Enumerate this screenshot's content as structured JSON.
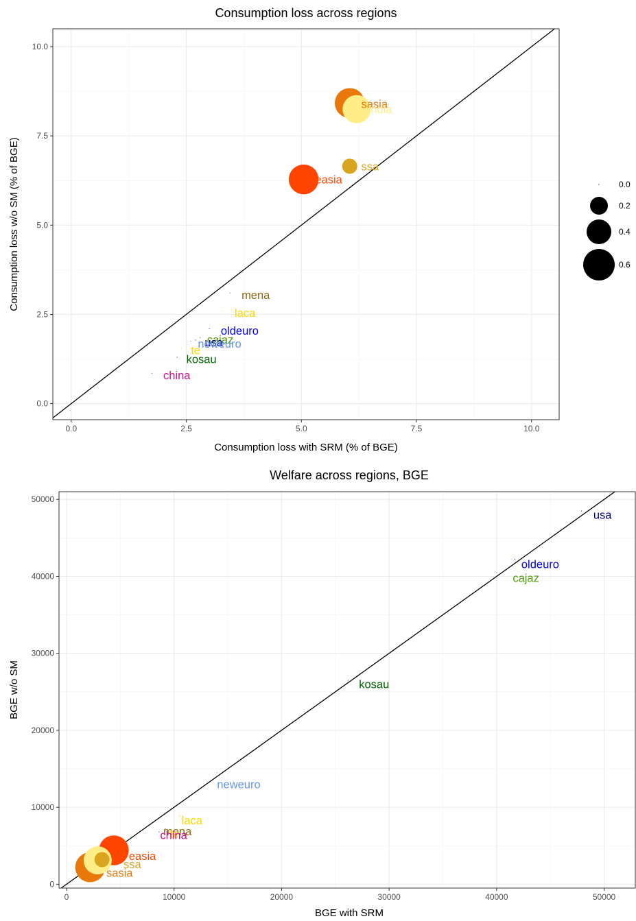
{
  "chart_data": [
    {
      "type": "scatter",
      "title": "Consumption loss across regions",
      "xlabel": "Consumption loss with SRM (% of BGE)",
      "ylabel": "Consumption loss w/o SM (% of BGE)",
      "xlim": [
        -0.4,
        10.6
      ],
      "ylim": [
        -0.45,
        10.5
      ],
      "xticks": [
        "0.0",
        "2.5",
        "5.0",
        "7.5",
        "10.0"
      ],
      "yticks": [
        "0.0",
        "2.5",
        "5.0",
        "7.5",
        "10.0"
      ],
      "diagonal": true,
      "grid": true,
      "points": [
        {
          "label": "sasia",
          "x": 6.05,
          "y": 8.42,
          "size": 0.55,
          "color": "#E8780A",
          "lx": 6.3,
          "ly": 8.4
        },
        {
          "label": "india",
          "x": 6.2,
          "y": 8.25,
          "size": 0.5,
          "color": "#FFEE88",
          "lx": 6.45,
          "ly": 8.25
        },
        {
          "label": "ssa",
          "x": 6.05,
          "y": 6.65,
          "size": 0.12,
          "color": "#D9A520",
          "lx": 6.3,
          "ly": 6.65
        },
        {
          "label": "easia",
          "x": 5.05,
          "y": 6.28,
          "size": 0.55,
          "color": "#FF4500",
          "lx": 5.3,
          "ly": 6.28
        },
        {
          "label": "mena",
          "x": 3.45,
          "y": 3.1,
          "size": 0.0,
          "color": "#8B6914",
          "lx": 3.7,
          "ly": 3.05
        },
        {
          "label": "laca",
          "x": 3.3,
          "y": 2.6,
          "size": 0.0,
          "color": "#FFD700",
          "lx": 3.55,
          "ly": 2.55
        },
        {
          "label": "oldeuro",
          "x": 3.0,
          "y": 2.1,
          "size": 0.0,
          "color": "#0000EE",
          "lx": 3.25,
          "ly": 2.05
        },
        {
          "label": "cajaz",
          "x": 2.8,
          "y": 1.85,
          "size": 0.0,
          "color": "#4E9A06",
          "lx": 2.95,
          "ly": 1.8
        },
        {
          "label": "usa",
          "x": 2.7,
          "y": 1.78,
          "size": 0.0,
          "color": "#00008B",
          "lx": 2.9,
          "ly": 1.72
        },
        {
          "label": "neweuro",
          "x": 2.6,
          "y": 1.75,
          "size": 0.0,
          "color": "#6495ED",
          "lx": 2.75,
          "ly": 1.68
        },
        {
          "label": "te",
          "x": 2.4,
          "y": 1.55,
          "size": 0.0,
          "color": "#FFD700",
          "lx": 2.6,
          "ly": 1.5
        },
        {
          "label": "kosau",
          "x": 2.3,
          "y": 1.3,
          "size": 0.0,
          "color": "#006400",
          "lx": 2.5,
          "ly": 1.25
        },
        {
          "label": "china",
          "x": 1.75,
          "y": 0.85,
          "size": 0.0,
          "color": "#C71585",
          "lx": 2.0,
          "ly": 0.8
        }
      ]
    },
    {
      "type": "scatter",
      "title": "Welfare across regions, BGE",
      "xlabel": "BGE with SRM",
      "ylabel": "BGE w/o SM",
      "xlim": [
        -700,
        52900
      ],
      "ylim": [
        -500,
        51000
      ],
      "xticks": [
        "0",
        "10000",
        "20000",
        "30000",
        "40000",
        "50000"
      ],
      "yticks": [
        "0",
        "10000",
        "20000",
        "30000",
        "40000",
        "50000"
      ],
      "diagonal": true,
      "grid": true,
      "points": [
        {
          "label": "usa",
          "x": 47900,
          "y": 48500,
          "size": 0.0,
          "color": "#00008B",
          "lx": 49000,
          "ly": 48000
        },
        {
          "label": "oldeuro",
          "x": 41700,
          "y": 42200,
          "size": 0.0,
          "color": "#0000EE",
          "lx": 42300,
          "ly": 41600
        },
        {
          "label": "cajaz",
          "x": 40000,
          "y": 40500,
          "size": 0.0,
          "color": "#4E9A06",
          "lx": 41500,
          "ly": 39800
        },
        {
          "label": "kosau",
          "x": 26200,
          "y": 26500,
          "size": 0.0,
          "color": "#006400",
          "lx": 27200,
          "ly": 26000
        },
        {
          "label": "neweuro",
          "x": 14000,
          "y": 14500,
          "size": 0.0,
          "color": "#6495ED",
          "lx": 14000,
          "ly": 13000
        },
        {
          "label": "laca",
          "x": 10500,
          "y": 8900,
          "size": 0.0,
          "color": "#FFD700",
          "lx": 10700,
          "ly": 8300
        },
        {
          "label": "mena",
          "x": 9200,
          "y": 7200,
          "size": 0.0,
          "color": "#8B6914",
          "lx": 9000,
          "ly": 6900
        },
        {
          "label": "te",
          "x": 9600,
          "y": 6900,
          "size": 0.0,
          "color": "#FFD700",
          "lx": 9600,
          "ly": 6600
        },
        {
          "label": "china",
          "x": 8600,
          "y": 6800,
          "size": 0.0,
          "color": "#C71585",
          "lx": 8700,
          "ly": 6400
        },
        {
          "label": "easia",
          "x": 4400,
          "y": 4400,
          "size": 0.55,
          "color": "#FF4500",
          "lx": 5800,
          "ly": 3700
        },
        {
          "label": "india",
          "x": 2900,
          "y": 3100,
          "size": 0.5,
          "color": "#FFEE88",
          "lx": 0,
          "ly": 0,
          "hide_label": true
        },
        {
          "label": "ssa",
          "x": 3300,
          "y": 3200,
          "size": 0.12,
          "color": "#D9A520",
          "lx": 5300,
          "ly": 2600
        },
        {
          "label": "sasia",
          "x": 2200,
          "y": 2200,
          "size": 0.55,
          "color": "#E8780A",
          "lx": 3700,
          "ly": 1500
        }
      ]
    }
  ],
  "legend": {
    "entries": [
      {
        "label": "0.0",
        "size": 0.0
      },
      {
        "label": "0.2",
        "size": 0.2
      },
      {
        "label": "0.4",
        "size": 0.4
      },
      {
        "label": "0.6",
        "size": 0.6
      }
    ]
  }
}
